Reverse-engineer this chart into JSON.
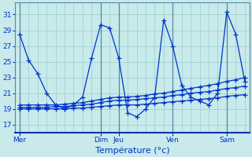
{
  "xlabel": "Température (°c)",
  "background_color": "#c8eaea",
  "line_color": "#0033cc",
  "grid_color": "#99cccc",
  "ylim": [
    16.0,
    32.5
  ],
  "yticks": [
    17,
    19,
    21,
    23,
    25,
    27,
    29,
    31
  ],
  "day_labels": [
    "Mer",
    "Dim",
    "Jeu",
    "Ven",
    "Sam"
  ],
  "day_x": [
    0,
    9,
    11,
    17,
    23
  ],
  "xtick_minor_interval": 1,
  "series_main": [
    28.5,
    25.2,
    23.5,
    21.0,
    19.5,
    19.0,
    19.5,
    20.5,
    25.5,
    29.7,
    29.3,
    25.5,
    18.5,
    18.0,
    19.0,
    20.5,
    30.3,
    27.0,
    22.0,
    20.5,
    20.0,
    19.5,
    21.0,
    31.3,
    28.5,
    22.5
  ],
  "series_flat1": [
    19.0,
    19.0,
    19.0,
    19.0,
    19.0,
    19.0,
    19.1,
    19.1,
    19.2,
    19.3,
    19.4,
    19.5,
    19.5,
    19.5,
    19.6,
    19.7,
    19.8,
    19.9,
    20.0,
    20.1,
    20.2,
    20.3,
    20.4,
    20.6,
    20.7,
    20.8
  ],
  "series_flat2": [
    19.2,
    19.2,
    19.2,
    19.2,
    19.3,
    19.3,
    19.4,
    19.5,
    19.6,
    19.8,
    20.0,
    20.1,
    20.1,
    20.2,
    20.3,
    20.4,
    20.5,
    20.7,
    20.8,
    21.0,
    21.1,
    21.2,
    21.4,
    21.6,
    21.7,
    21.9
  ],
  "series_flat3": [
    19.5,
    19.5,
    19.5,
    19.5,
    19.5,
    19.6,
    19.7,
    19.8,
    20.0,
    20.2,
    20.4,
    20.5,
    20.5,
    20.6,
    20.7,
    20.9,
    21.0,
    21.2,
    21.4,
    21.6,
    21.8,
    22.0,
    22.2,
    22.5,
    22.7,
    23.0
  ],
  "n_points": 26
}
